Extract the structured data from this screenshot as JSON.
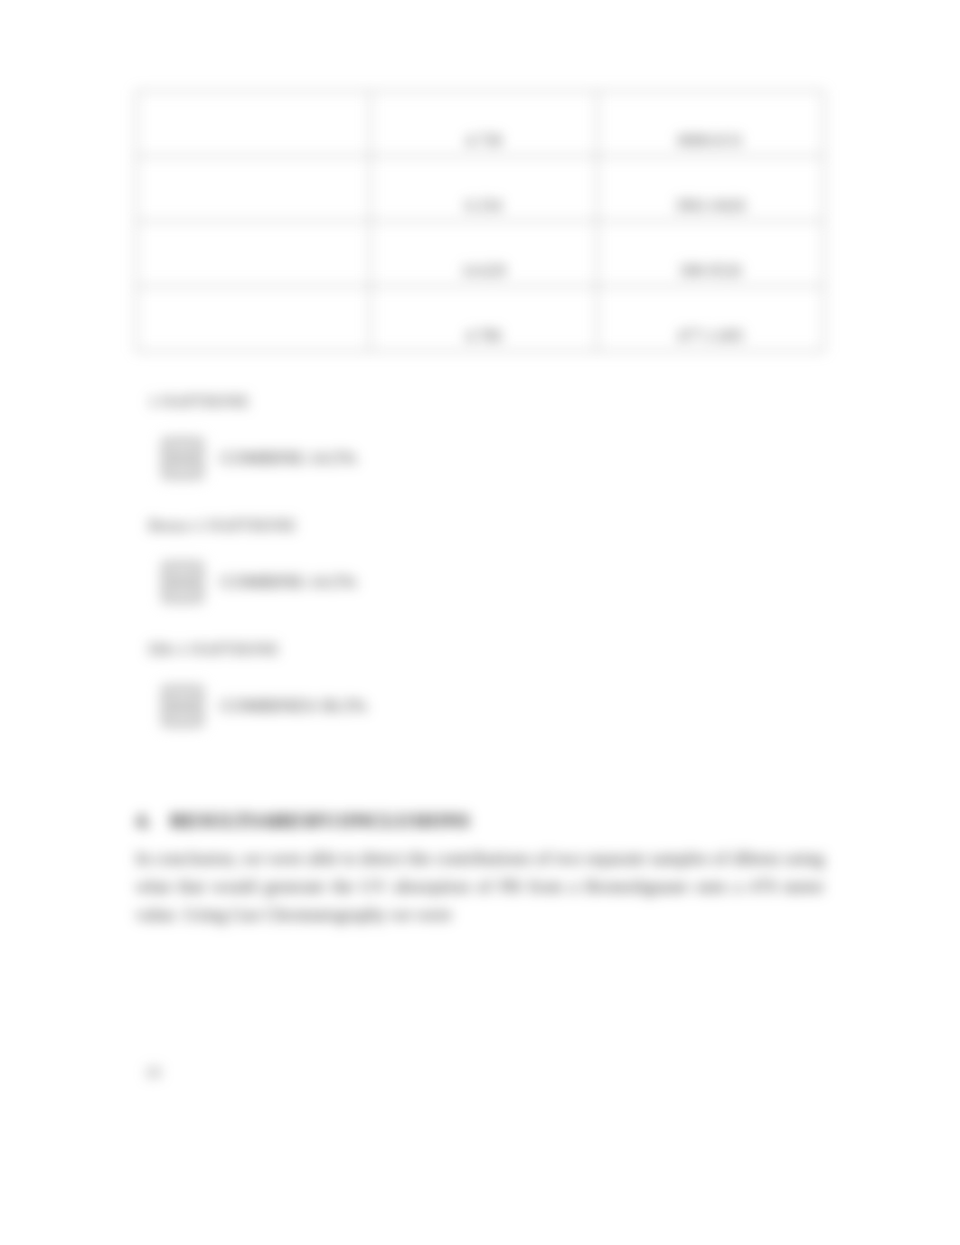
{
  "table": {
    "rows": [
      {
        "col1": "",
        "col2": "4.738",
        "col3": "0000.0/31"
      },
      {
        "col1": "",
        "col2": "6.334",
        "col3": "3961-0426"
      },
      {
        "col1": "",
        "col2": "14.629",
        "col3": "308-9526"
      },
      {
        "col1": "",
        "col2": "4.786",
        "col3": "477-1.605"
      }
    ]
  },
  "sections": [
    {
      "label": "1-NAPTHONE"
    },
    {
      "label": "Benzo-1-NAPTHONE"
    },
    {
      "label": "Dib-1-NAPTHONE"
    }
  ],
  "images": [
    {
      "caption": "COMBINE-14.5%"
    },
    {
      "caption": "COMBINE-14.5%"
    },
    {
      "caption": "COMBINES-58.3%"
    }
  ],
  "conclusion": {
    "number": "4.",
    "title": "RESULTSARESFCONCLUSIONS",
    "body": "In conclusion, we were able to detect the contributions of two separate samples of dibenz using what that would generate the UV absorption of PB from a Bromolignane onto a 470 meter value. Using Gas Chromatography we were"
  },
  "pageNumber": "10",
  "style": {
    "background_color": "#ffffff",
    "text_color": "#333333",
    "border_color": "#888888",
    "font_family": "Georgia, serif"
  }
}
